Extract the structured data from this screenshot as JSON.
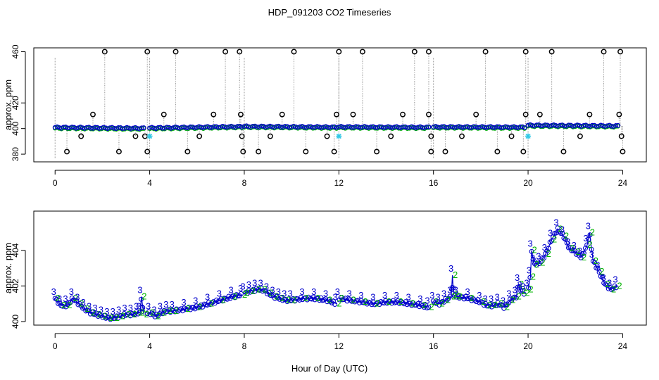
{
  "figure": {
    "title": "HDP_091203  CO2 Timeseries",
    "xlabel": "Hour of Day (UTC)"
  },
  "chart_data": [
    {
      "type": "scatter",
      "name": "raw-overview",
      "ylabel": "approx. ppm",
      "xlim": [
        -0.9,
        25
      ],
      "ylim": [
        374,
        463
      ],
      "xticks": [
        0,
        4,
        8,
        12,
        16,
        20,
        24
      ],
      "yticks": [
        380,
        420,
        460
      ],
      "ytick_labels_extra": [
        {
          "value": 400,
          "label": "400"
        }
      ],
      "baseline_segments": [
        {
          "x_start": 0.0,
          "x_end": 3.75,
          "y_start": 400.8,
          "y_end": 400.2
        },
        {
          "x_start": 4.0,
          "x_end": 7.9,
          "y_start": 400.4,
          "y_end": 401.5
        },
        {
          "x_start": 8.0,
          "x_end": 11.9,
          "y_start": 401.6,
          "y_end": 401.0
        },
        {
          "x_start": 12.0,
          "x_end": 15.8,
          "y_start": 401.2,
          "y_end": 400.9
        },
        {
          "x_start": 16.0,
          "x_end": 19.85,
          "y_start": 401.2,
          "y_end": 401.0
        },
        {
          "x_start": 20.0,
          "x_end": 23.8,
          "y_start": 402.5,
          "y_end": 402.0
        }
      ],
      "spikes_high": [
        2.1,
        3.9,
        5.1,
        7.2,
        7.8,
        10.1,
        12.0,
        13.0,
        15.2,
        15.8,
        18.2,
        19.9,
        21.0,
        23.2,
        23.9
      ],
      "spikes_mid": [
        1.6,
        4.6,
        6.7,
        7.85,
        9.6,
        11.9,
        12.6,
        14.7,
        15.8,
        17.8,
        19.9,
        20.5,
        22.6,
        23.85
      ],
      "spikes_low_mid": [
        1.1,
        3.4,
        3.8,
        6.1,
        7.9,
        9.1,
        11.5,
        14.2,
        15.9,
        17.2,
        19.3,
        22.2,
        23.95
      ],
      "spikes_low": [
        0.5,
        2.7,
        3.9,
        5.6,
        7.95,
        8.6,
        10.6,
        11.8,
        13.6,
        15.9,
        16.5,
        18.7,
        19.8,
        21.5,
        24.0
      ],
      "cyan_markers": [
        {
          "x": 4.0,
          "y": 394
        },
        {
          "x": 12.0,
          "y": 394
        },
        {
          "x": 20.0,
          "y": 394
        }
      ]
    },
    {
      "type": "scatter",
      "name": "filtered-detail",
      "ylabel": "approx. ppm",
      "xlim": [
        -0.9,
        25
      ],
      "ylim": [
        399.8,
        406.2
      ],
      "xticks": [
        0,
        4,
        8,
        12,
        16,
        20,
        24
      ],
      "yticks": [
        400,
        402,
        404
      ],
      "legend_symbols": [
        "2",
        "3"
      ],
      "series": [
        {
          "name": "co2",
          "x": [
            0.0,
            0.25,
            0.5,
            0.75,
            1.0,
            1.25,
            1.5,
            1.75,
            2.0,
            2.25,
            2.5,
            2.75,
            3.0,
            3.25,
            3.5,
            3.6,
            3.65,
            3.75,
            4.0,
            4.25,
            4.5,
            4.75,
            5.0,
            5.5,
            6.0,
            6.5,
            7.0,
            7.5,
            7.9,
            8.0,
            8.25,
            8.5,
            8.75,
            9.0,
            9.25,
            9.5,
            9.75,
            10.0,
            10.5,
            11.0,
            11.5,
            11.9,
            12.0,
            12.5,
            13.0,
            13.5,
            14.0,
            14.5,
            15.0,
            15.5,
            15.8,
            16.0,
            16.25,
            16.5,
            16.75,
            16.8,
            16.85,
            17.0,
            17.5,
            18.0,
            18.25,
            18.5,
            18.75,
            19.0,
            19.25,
            19.5,
            19.6,
            19.7,
            19.85,
            20.0,
            20.1,
            20.15,
            20.25,
            20.5,
            20.75,
            21.0,
            21.25,
            21.5,
            21.75,
            22.0,
            22.25,
            22.5,
            22.6,
            22.75,
            23.0,
            23.25,
            23.5,
            23.75
          ],
          "y": [
            401.3,
            400.9,
            400.9,
            401.3,
            401.0,
            400.7,
            400.5,
            400.4,
            400.3,
            400.2,
            400.2,
            400.3,
            400.4,
            400.4,
            400.5,
            400.5,
            401.4,
            400.4,
            400.5,
            400.3,
            400.5,
            400.6,
            400.6,
            400.7,
            400.8,
            401.0,
            401.2,
            401.4,
            401.5,
            401.6,
            401.7,
            401.8,
            401.8,
            401.6,
            401.4,
            401.3,
            401.2,
            401.2,
            401.3,
            401.3,
            401.2,
            401.0,
            401.3,
            401.2,
            401.1,
            401.0,
            401.1,
            401.1,
            401.0,
            400.9,
            400.8,
            401.1,
            401.0,
            401.2,
            401.4,
            402.6,
            401.5,
            401.4,
            401.3,
            401.1,
            400.9,
            400.9,
            401.0,
            400.8,
            401.2,
            401.4,
            402.1,
            401.7,
            401.6,
            401.8,
            402.5,
            404.0,
            403.2,
            403.3,
            403.8,
            404.6,
            405.2,
            404.8,
            404.1,
            403.9,
            403.6,
            404.3,
            405.0,
            403.4,
            402.8,
            402.1,
            401.8,
            402.0
          ]
        }
      ]
    }
  ]
}
